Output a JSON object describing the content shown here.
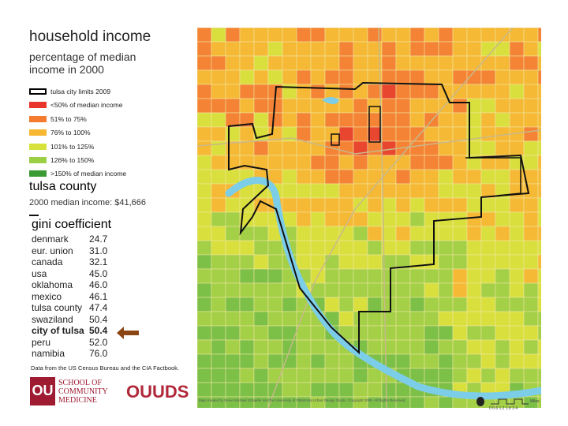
{
  "header": {
    "title": "household income",
    "subtitle": [
      "percentage of median",
      "income in 2000"
    ]
  },
  "legend": {
    "items": [
      "tulsa city limits 2009",
      "<50% of median income",
      "51% to 75%",
      "76% to 100%",
      "101% to 125%",
      "126% to 150%",
      ">150% of median income"
    ]
  },
  "county": {
    "name": "tulsa county",
    "median_income": "2000 median income: $41,666"
  },
  "gini": {
    "title": "gini coefficient",
    "rows": [
      [
        "denmark",
        "24.7"
      ],
      [
        "eur. union",
        "31.0"
      ],
      [
        "canada",
        "32.1"
      ],
      [
        "usa",
        "45.0"
      ],
      [
        "oklahoma",
        "46.0"
      ],
      [
        "mexico",
        "46.1"
      ],
      [
        "tulsa county",
        "47.4"
      ],
      [
        "swaziland",
        "50.4"
      ],
      [
        "city of tulsa",
        "50.4"
      ],
      [
        "peru",
        "52.0"
      ],
      [
        "namibia",
        "76.0"
      ]
    ]
  },
  "source": "Data from the US Census Bureau and the CIA Factbook.",
  "logos": {
    "school": [
      "SCHOOL OF",
      "COMMUNITY",
      "MEDICINE"
    ],
    "ouuds": "OUUDS"
  },
  "map": {
    "credit": "Map created by Steve Michael Schaefer and the University of Oklahoma Urban Design Studio. Copyright 2009. All Rights Reserved.",
    "scale_unit": "Miles",
    "scale_labels": "0  0.6  1.2  1.8  2.4"
  }
}
